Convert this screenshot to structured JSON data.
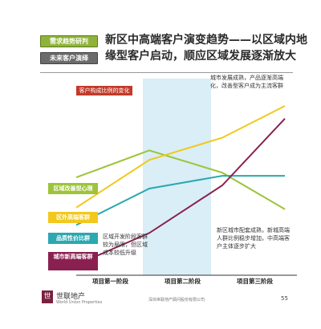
{
  "tabs": [
    {
      "label": "需求趋势研判",
      "active": true
    },
    {
      "label": "未来客户演绎",
      "active": false
    }
  ],
  "title": "新区中高端客户演变趋势——以区域内地缘型客户启动，顺应区域发展逐渐放大",
  "notes": {
    "top": "城市发展成熟，产品逐渐高端化，改善型客户成为主流客群",
    "left": "区域开发阶段客群较为局限，但区域成本较低升级",
    "bottom": "新区城市配套成熟，新城高端人群比例稳步增加，中高端客户主体逐步扩大"
  },
  "chart_label": "客户构成比例的变化",
  "series_labels": [
    {
      "label": "区域改善型心理",
      "color": "#9dc43a"
    },
    {
      "label": "区外高端客群",
      "color": "#f2c81e"
    },
    {
      "label": "品质性价比群",
      "color": "#2ba8b0"
    },
    {
      "label": "城市新高端客群",
      "color": "#8a2050"
    }
  ],
  "stages": [
    "项目第一阶段",
    "项目第二阶段",
    "项目第三阶段"
  ],
  "footer": {
    "logo_text": "世联地产",
    "logo_sub": "World Union Properties",
    "small": "深圳世联地产顾问股份有限公司",
    "page": "55"
  },
  "chart_data": {
    "type": "line",
    "categories": [
      "项目第一阶段",
      "项目第二阶段",
      "项目第三阶段"
    ],
    "series": [
      {
        "name": "区域改善型心理",
        "color": "#9dc43a",
        "points": [
          [
            0,
            0.55
          ],
          [
            0.35,
            0.72
          ],
          [
            0.7,
            0.58
          ],
          [
            1,
            0.35
          ]
        ]
      },
      {
        "name": "区外高端客群",
        "color": "#f2c81e",
        "points": [
          [
            0,
            0.36
          ],
          [
            0.35,
            0.66
          ],
          [
            0.7,
            0.8
          ],
          [
            1,
            1.0
          ]
        ]
      },
      {
        "name": "品质性价比群",
        "color": "#2ba8b0",
        "points": [
          [
            0,
            0.25
          ],
          [
            0.35,
            0.48
          ],
          [
            0.7,
            0.56
          ],
          [
            1,
            0.56
          ]
        ]
      },
      {
        "name": "城市新高端客群",
        "color": "#8a2050",
        "points": [
          [
            0,
            0.0
          ],
          [
            0.35,
            0.2
          ],
          [
            0.7,
            0.5
          ],
          [
            1,
            0.92
          ]
        ]
      }
    ],
    "highlight_stage": "项目第二阶段"
  }
}
